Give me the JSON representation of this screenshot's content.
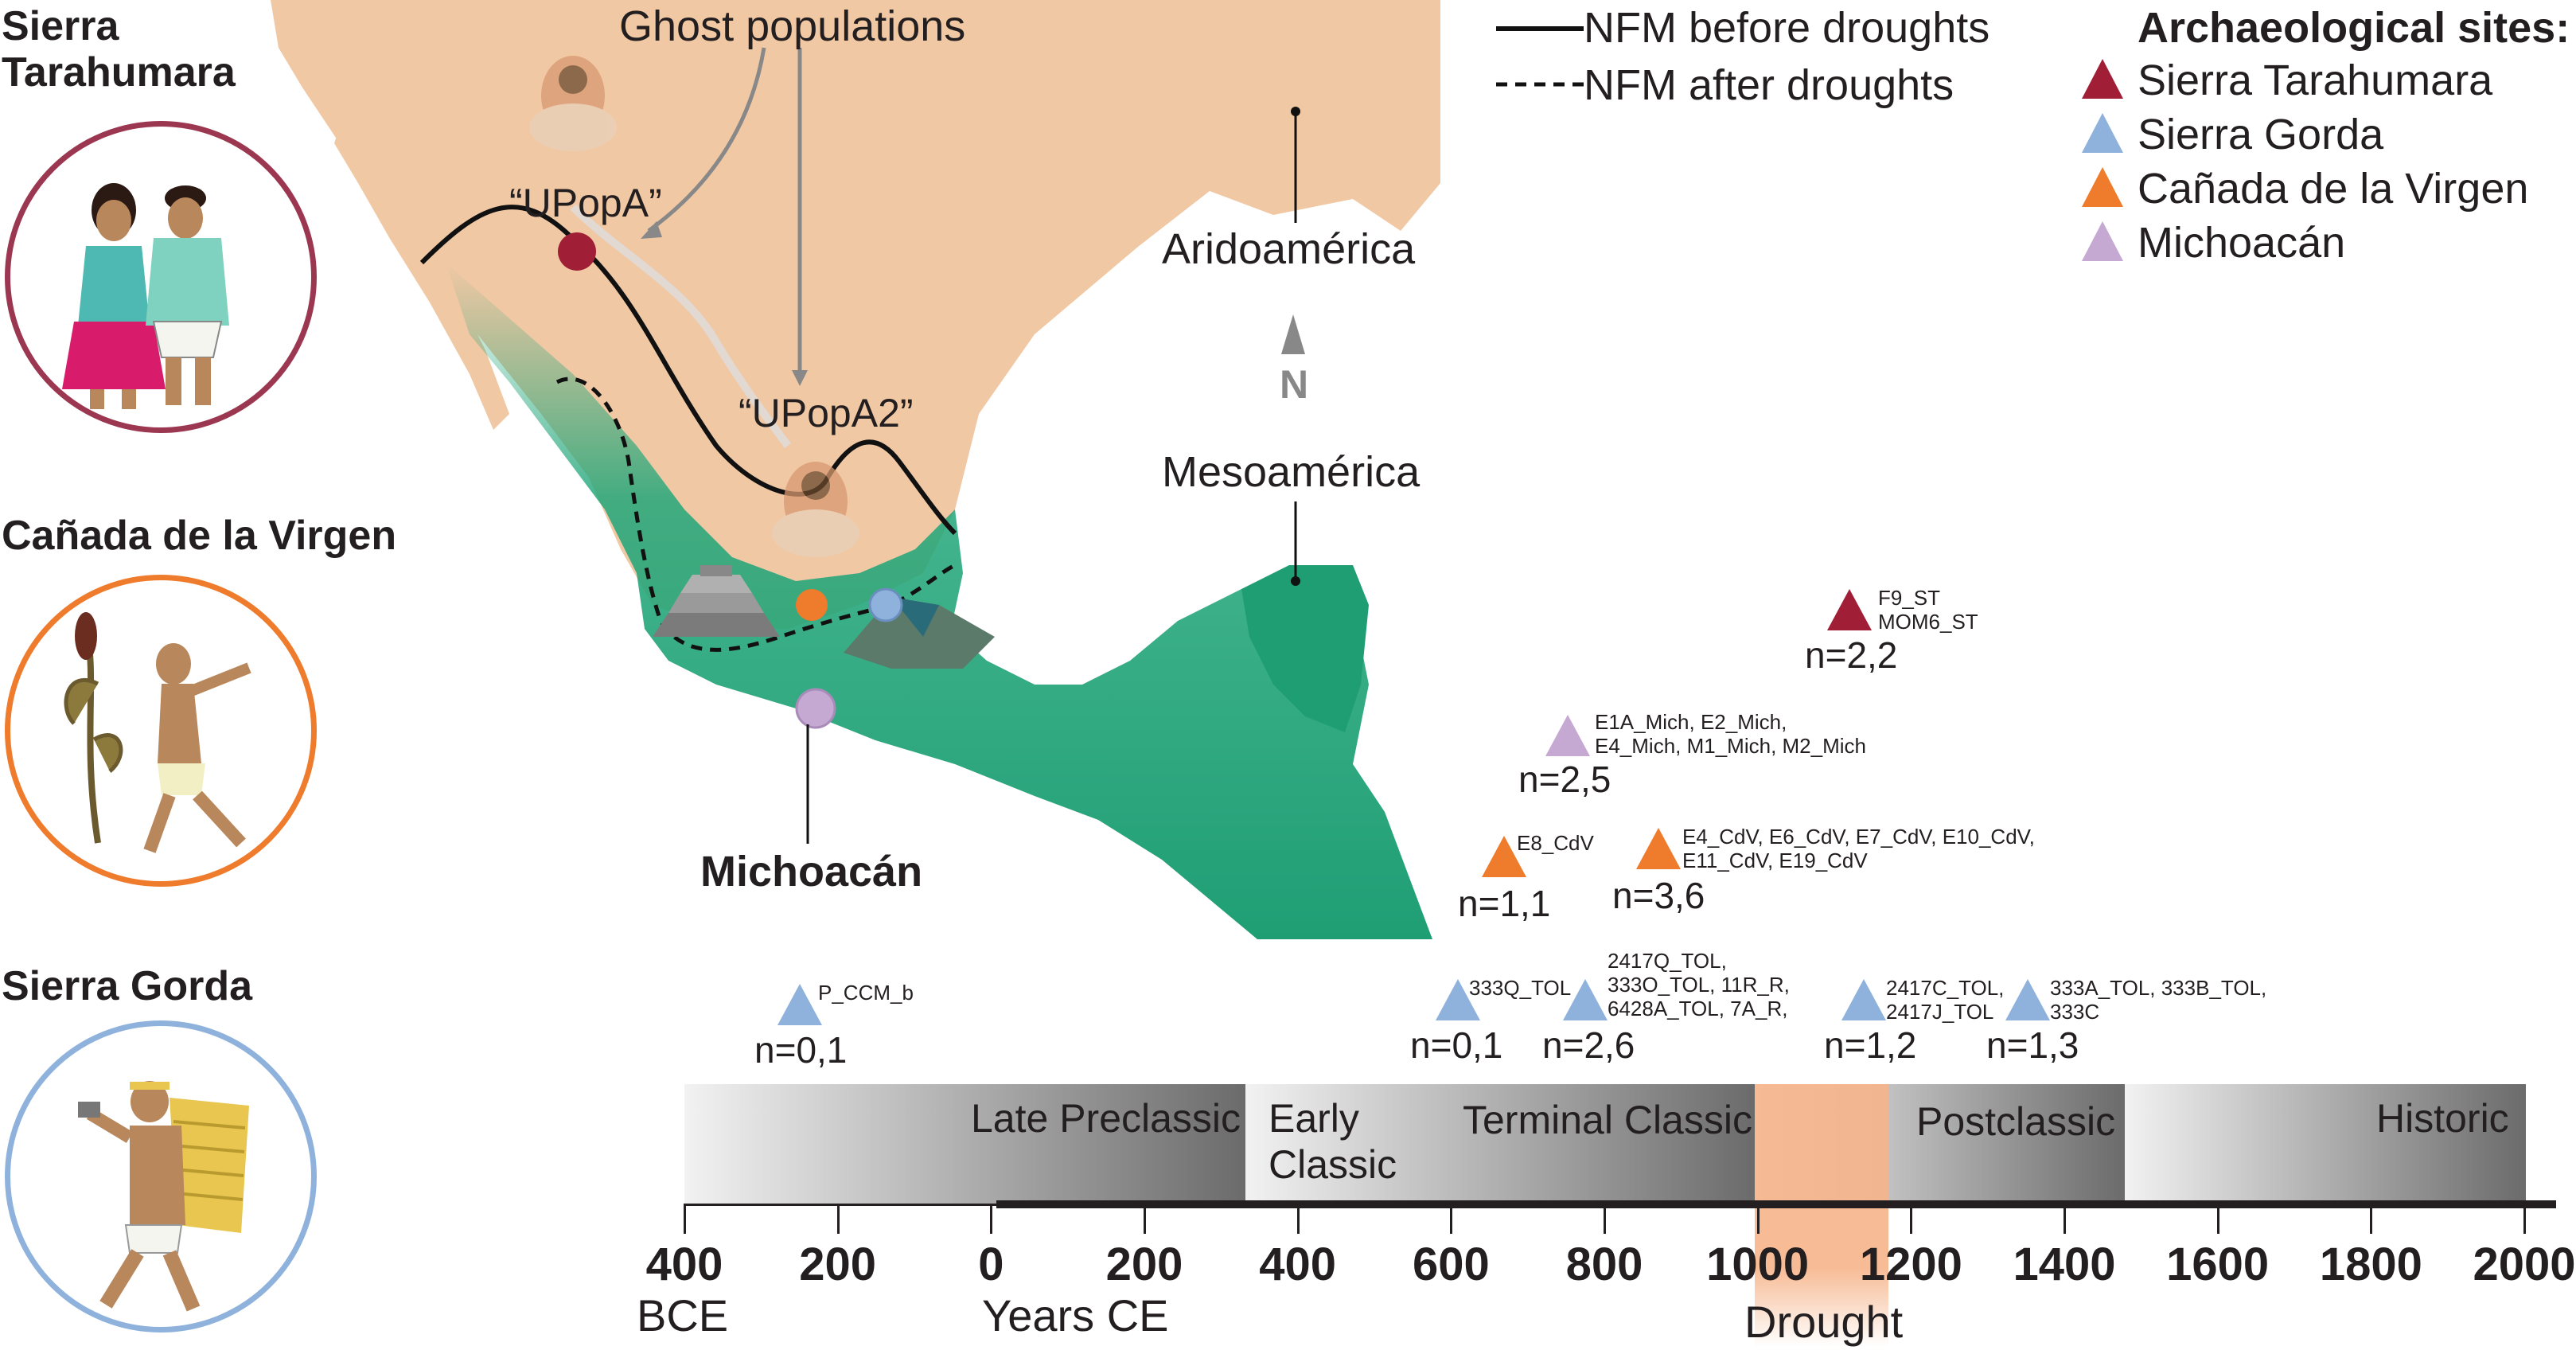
{
  "colors": {
    "sierra_tarahumara": "#a01f37",
    "sierra_gorda": "#8fb2dc",
    "canada_virgen": "#ef7b2c",
    "michoacan": "#c5a9d2",
    "drought": "#f6b48a",
    "map_land": "#f1c8a4",
    "map_green": "#23a77a"
  },
  "regions": {
    "sierra_tarahumara": "Sierra\nTarahumara",
    "canada_virgen": "Cañada de la Virgen",
    "sierra_gorda": "Sierra Gorda"
  },
  "map": {
    "ghost_populations": "Ghost populations",
    "upopa": "“UPopA”",
    "upopa2": "“UPopA2”",
    "aridoamerica": "Aridoamérica",
    "mesoamerica": "Mesoamérica",
    "michoacan": "Michoacán",
    "north": "N"
  },
  "legend": {
    "line_before": "NFM before droughts",
    "line_after": "NFM after droughts",
    "sites_title": "Archaeological sites:",
    "sites": [
      "Sierra Tarahumara",
      "Sierra Gorda",
      "Cañada de la Virgen",
      "Michoacán"
    ]
  },
  "samples": [
    {
      "site": "sierra_tarahumara",
      "ids": "F9_ST\nMOM6_ST",
      "n": "n=2,2"
    },
    {
      "site": "michoacan",
      "ids": "E1A_Mich, E2_Mich,\nE4_Mich, M1_Mich, M2_Mich",
      "n": "n=2,5"
    },
    {
      "site": "canada_virgen",
      "ids": "E8_CdV",
      "n": "n=1,1"
    },
    {
      "site": "canada_virgen",
      "ids": "E4_CdV, E6_CdV, E7_CdV, E10_CdV,\nE11_CdV, E19_CdV",
      "n": "n=3,6"
    },
    {
      "site": "sierra_gorda",
      "ids": "P_CCM_b",
      "n": "n=0,1"
    },
    {
      "site": "sierra_gorda",
      "ids": "333Q_TOL",
      "n": "n=0,1"
    },
    {
      "site": "sierra_gorda",
      "ids": "2417Q_TOL,\n333O_TOL, 11R_R,\n6428A_TOL, 7A_R,",
      "n": "n=2,6"
    },
    {
      "site": "sierra_gorda",
      "ids": "2417C_TOL,\n2417J_TOL",
      "n": "n=1,2"
    },
    {
      "site": "sierra_gorda",
      "ids": "333A_TOL, 333B_TOL,\n333C",
      "n": "n=1,3"
    }
  ],
  "timeline": {
    "periods": [
      "Late Preclassic",
      "Early\nClassic",
      "Terminal Classic",
      "Postclassic",
      "Historic"
    ],
    "ticks": [
      "400",
      "200",
      "0",
      "200",
      "400",
      "600",
      "800",
      "1000",
      "1200",
      "1400",
      "1600",
      "1800",
      "2000"
    ],
    "bce": "BCE",
    "ce": "Years CE",
    "drought": "Drought"
  }
}
